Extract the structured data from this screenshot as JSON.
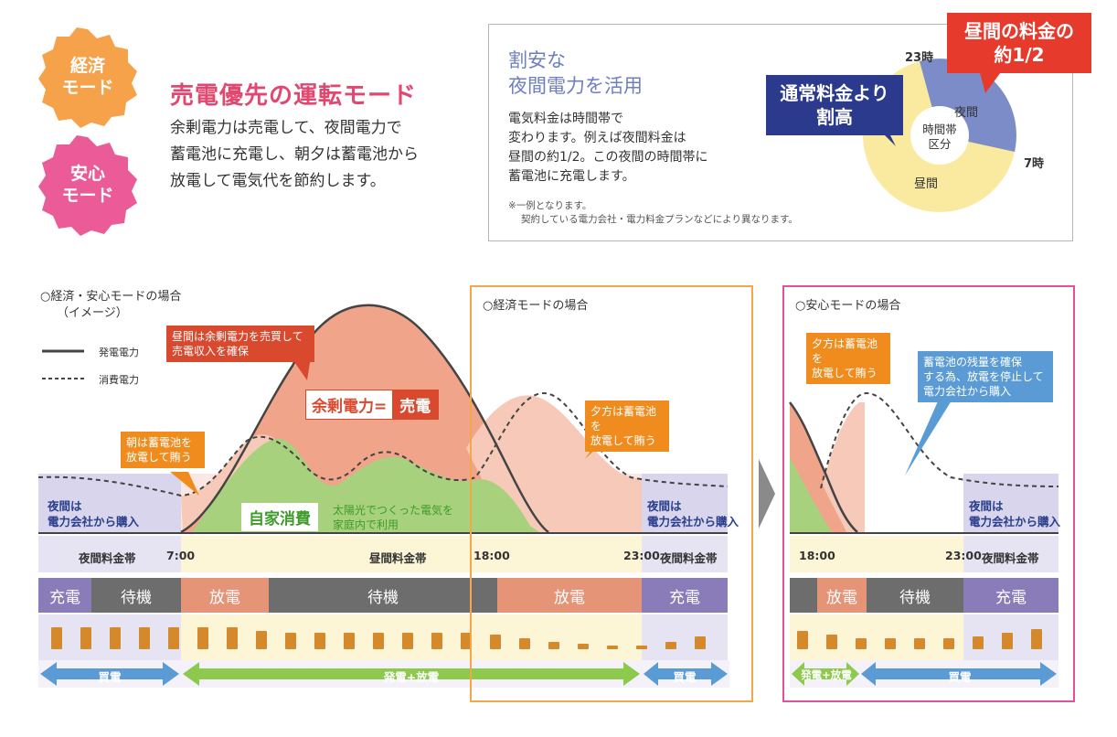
{
  "badges": {
    "economy": {
      "line1": "経済",
      "line2": "モード",
      "color": "#f6a24a"
    },
    "safety": {
      "line1": "安心",
      "line2": "モード",
      "color": "#ea5b97"
    }
  },
  "headline": "売電優先の運転モード",
  "description": [
    "余剰電力は売電して、夜間電力で",
    "蓄電池に充電し、朝夕は蓄電池から",
    "放電して電気代を節約します。"
  ],
  "info_box": {
    "title": [
      "割安な",
      "夜間電力を活用"
    ],
    "text": [
      "電気料金は時間帯で",
      "変わります。例えば夜間料金は",
      "昼間の約1/2。この夜間の時間帯に",
      "蓄電池に充電します。"
    ],
    "note": [
      "※一例となります。",
      "契約している電力会社・電力料金プランなどにより異なります。"
    ],
    "pie": {
      "center": [
        "時間帯",
        "区分"
      ],
      "label_23": "23時",
      "label_7": "7時",
      "label_night": "夜間",
      "label_day": "昼間",
      "color_night": "#7b8cc8",
      "color_day": "#faeaa0"
    },
    "callout_blue": [
      "通常料金より",
      "割高"
    ],
    "callout_red": [
      "昼間の料金の",
      "約1/2"
    ]
  },
  "main_chart": {
    "title": [
      "○経済・安心モードの場合",
      "（イメージ）"
    ],
    "legend": {
      "generation": "発電電力",
      "consumption": "消費電力"
    },
    "note_noon": [
      "昼間は余剰電力を売買して",
      "売電収入を確保"
    ],
    "note_morning": [
      "朝は蓄電池を",
      "放電して賄う"
    ],
    "note_evening": [
      "夕方は蓄電池を",
      "放電して賄う"
    ],
    "surplus_label": "余剰電力=",
    "surplus_tag": "売電",
    "self_label": "自家消費",
    "self_note": [
      "太陽光でつくった電気を",
      "家庭内で利用"
    ],
    "night_left": [
      "夜間は",
      "電力会社から購入"
    ],
    "night_right": [
      "夜間は",
      "電力会社から購入"
    ],
    "timeline": {
      "night_left": "夜間料金帯",
      "t7": "7:00",
      "day": "昼間料金帯",
      "t18": "18:00",
      "t23": "23:00",
      "night_right": "夜間料金帯"
    },
    "modes": {
      "charge": "充電",
      "standby": "待機",
      "discharge1": "放電",
      "standby2": "待機",
      "discharge2": "放電",
      "charge2": "充電"
    },
    "arrows": {
      "buy_left": "買電",
      "gen": "発電+放電",
      "buy_right": "買電"
    },
    "economy_frame_title": "○経済モードの場合"
  },
  "safety_chart": {
    "title": "○安心モードの場合",
    "note_evening": [
      "夕方は蓄電池を",
      "放電して賄う"
    ],
    "note_reserve": [
      "蓄電池の残量を確保",
      "する為、放電を停止して",
      "電力会社から購入"
    ],
    "night": [
      "夜間は",
      "電力会社から購入"
    ],
    "timeline": {
      "t18": "18:00",
      "t23": "23:00",
      "night": "夜間料金帯"
    },
    "modes": {
      "discharge": "放電",
      "standby": "待機",
      "charge": "充電"
    },
    "arrows": {
      "gen": "発電+放電",
      "buy": "買電"
    }
  }
}
